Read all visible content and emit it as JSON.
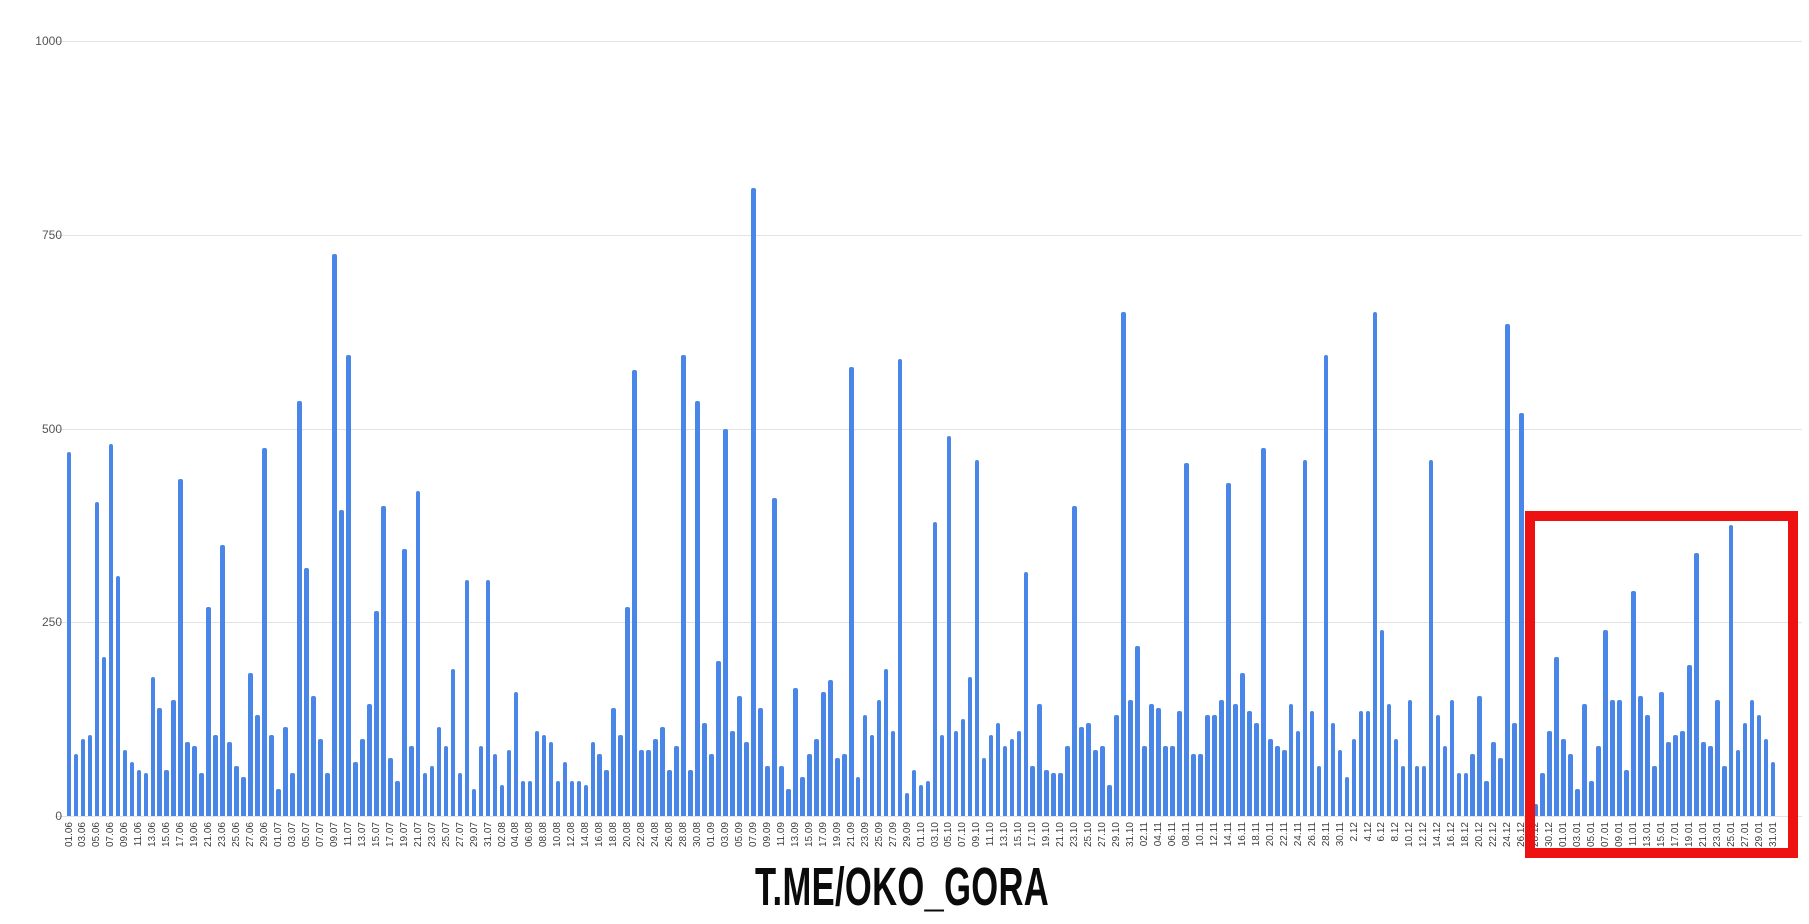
{
  "caption": {
    "text": "T.ME/OKO_GORA"
  },
  "chart_data": {
    "type": "bar",
    "title": "",
    "xlabel": "",
    "ylabel": "",
    "ylim": [
      0,
      1000
    ],
    "grid": true,
    "legend": "none",
    "bar_color": "#4a86e8",
    "gridline_color": "#e3e3e3",
    "y_tick_color": "#555555",
    "x_tick_color": "#3d3d3d",
    "y_tick_labels": [
      "0",
      "250",
      "500",
      "750",
      "1000"
    ],
    "y_tick_values": [
      0,
      250,
      500,
      750,
      1000
    ],
    "x_labels": [
      "01.06",
      "03.06",
      "05.06",
      "07.06",
      "09.06",
      "11.06",
      "13.06",
      "15.06",
      "17.06",
      "19.06",
      "21.06",
      "23.06",
      "25.06",
      "27.06",
      "29.06",
      "01.07",
      "03.07",
      "05.07",
      "07.07",
      "09.07",
      "11.07",
      "13.07",
      "15.07",
      "17.07",
      "19.07",
      "21.07",
      "23.07",
      "25.07",
      "27.07",
      "29.07",
      "31.07",
      "02.08",
      "04.08",
      "06.08",
      "08.08",
      "10.08",
      "12.08",
      "14.08",
      "16.08",
      "18.08",
      "20.08",
      "22.08",
      "24.08",
      "26.08",
      "28.08",
      "30.08",
      "01.09",
      "03.09",
      "05.09",
      "07.09",
      "09.09",
      "11.09",
      "13.09",
      "15.09",
      "17.09",
      "19.09",
      "21.09",
      "23.09",
      "25.09",
      "27.09",
      "29.09",
      "01.10",
      "03.10",
      "05.10",
      "07.10",
      "09.10",
      "11.10",
      "13.10",
      "15.10",
      "17.10",
      "19.10",
      "21.10",
      "23.10",
      "25.10",
      "27.10",
      "29.10",
      "31.10",
      "02.11",
      "04.11",
      "06.11",
      "08.11",
      "10.11",
      "12.11",
      "14.11",
      "16.11",
      "18.11",
      "20.11",
      "22.11",
      "24.11",
      "26.11",
      "28.11",
      "30.11",
      "2.12",
      "4.12",
      "6.12",
      "8.12",
      "10.12",
      "12.12",
      "14.12",
      "16.12",
      "18.12",
      "20.12",
      "22.12",
      "24.12",
      "26.12",
      "28.12",
      "30.12",
      "01.01",
      "03.01",
      "05.01",
      "07.01",
      "09.01",
      "11.01",
      "13.01",
      "15.01",
      "17.01",
      "19.01",
      "21.01",
      "23.01",
      "25.01",
      "27.01",
      "29.01",
      "31.01"
    ],
    "values": [
      470,
      80,
      100,
      105,
      405,
      205,
      480,
      310,
      85,
      70,
      60,
      55,
      180,
      140,
      60,
      150,
      435,
      95,
      90,
      55,
      270,
      105,
      350,
      95,
      65,
      50,
      185,
      130,
      475,
      105,
      35,
      115,
      55,
      535,
      320,
      155,
      100,
      55,
      725,
      395,
      595,
      70,
      100,
      145,
      265,
      400,
      75,
      45,
      345,
      90,
      420,
      55,
      65,
      115,
      90,
      190,
      55,
      305,
      35,
      90,
      305,
      80,
      40,
      85,
      160,
      45,
      45,
      110,
      105,
      95,
      45,
      70,
      45,
      45,
      40,
      95,
      80,
      60,
      140,
      105,
      270,
      575,
      85,
      85,
      100,
      115,
      60,
      90,
      595,
      60,
      535,
      120,
      80,
      200,
      500,
      110,
      155,
      95,
      810,
      140,
      65,
      410,
      65,
      35,
      165,
      50,
      80,
      100,
      160,
      175,
      75,
      80,
      580,
      50,
      130,
      105,
      150,
      190,
      110,
      590,
      30,
      60,
      40,
      45,
      380,
      105,
      490,
      110,
      125,
      180,
      460,
      75,
      105,
      120,
      90,
      100,
      110,
      315,
      65,
      145,
      60,
      55,
      55,
      90,
      400,
      115,
      120,
      85,
      90,
      40,
      130,
      650,
      150,
      220,
      90,
      145,
      140,
      90,
      90,
      135,
      455,
      80,
      80,
      130,
      130,
      150,
      430,
      145,
      185,
      135,
      120,
      475,
      100,
      90,
      85,
      145,
      110,
      460,
      135,
      65,
      595,
      120,
      85,
      50,
      100,
      135,
      135,
      650,
      240,
      145,
      100,
      65,
      150,
      65,
      65,
      460,
      130,
      90,
      150,
      55,
      55,
      80,
      155,
      45,
      95,
      75,
      635,
      120,
      520,
      45,
      15,
      55,
      110,
      205,
      100,
      80,
      35,
      145,
      45,
      90,
      240,
      150,
      150,
      60,
      290,
      155,
      130,
      65,
      160,
      95,
      105,
      110,
      195,
      340,
      95,
      90,
      150,
      65,
      375,
      85,
      120,
      150,
      130,
      100,
      70
    ],
    "highlight_box": {
      "from_label": "28.12",
      "to_label": "31.01",
      "color": "#ee1111",
      "stroke_px": 10
    }
  }
}
